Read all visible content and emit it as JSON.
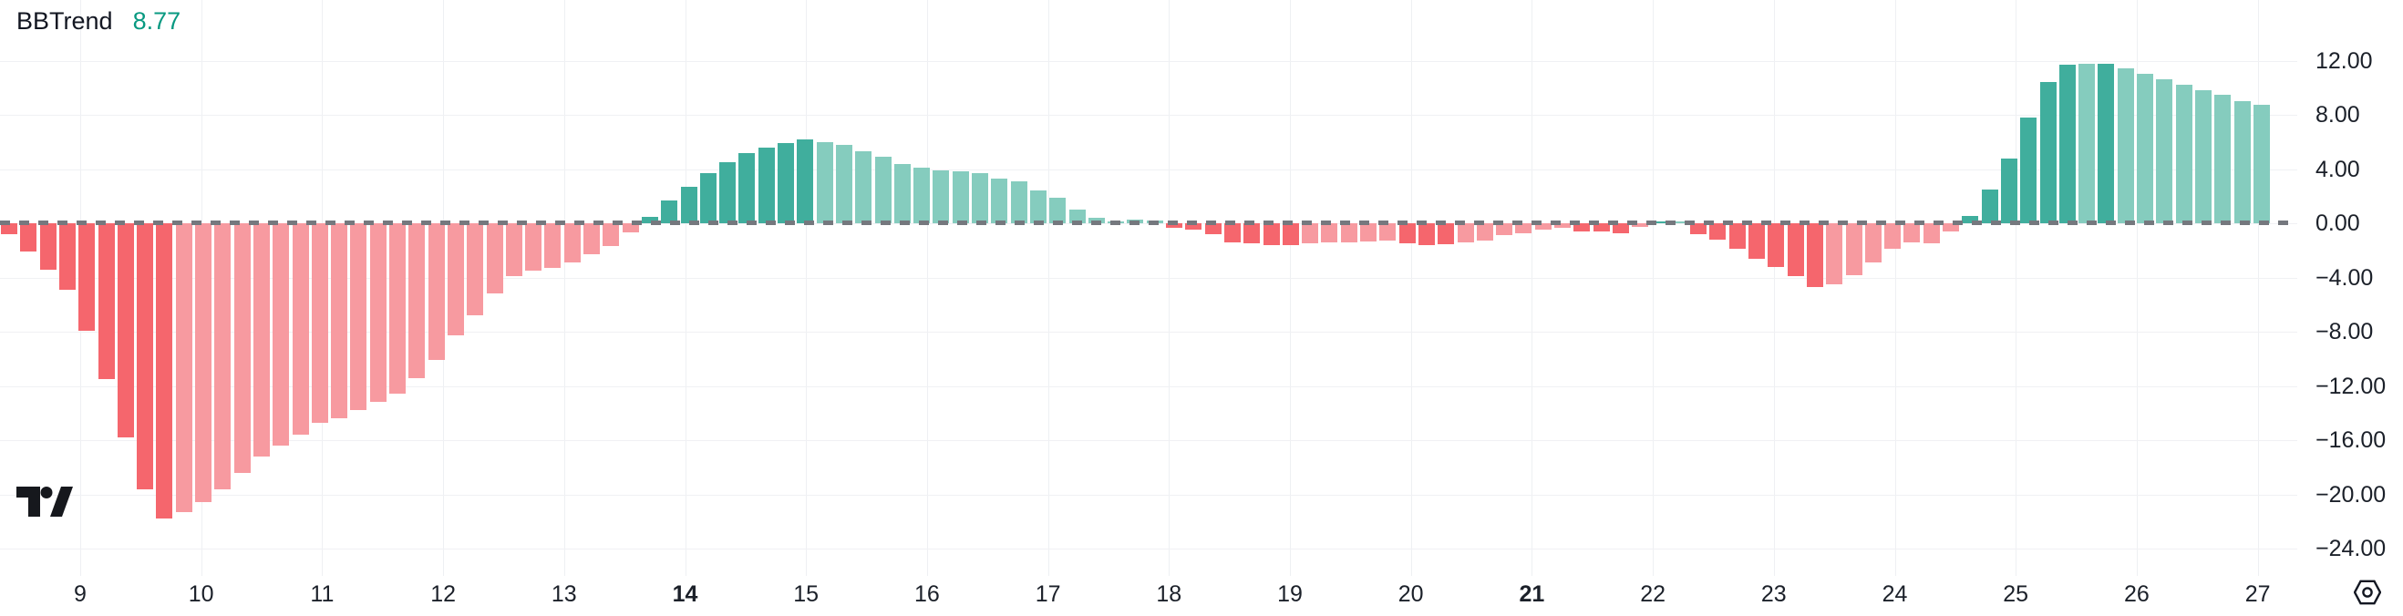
{
  "header": {
    "indicator_name": "BBTrend",
    "value": "8.77"
  },
  "colors": {
    "background": "#FFFFFF",
    "value_text": "#089981",
    "title_text": "#131722",
    "axis_text": "#1B2029",
    "grid": "#F0F1F4",
    "zero_dash": "#75787E",
    "neg_strong": "#F5666D",
    "neg_weak": "#F79AA0",
    "pos_strong": "#40AE9D",
    "pos_weak": "#85CCBE"
  },
  "icons": {
    "logo": "tradingview-logo",
    "gear": "timeframe-settings-icon"
  },
  "chart_data": {
    "type": "bar",
    "title": "BBTrend",
    "last_value": 8.77,
    "legend_position": "top-left",
    "grid": true,
    "y_axis": {
      "side": "right",
      "ticks": [
        12,
        8,
        4,
        0,
        -4,
        -8,
        -12,
        -16,
        -20,
        -24
      ],
      "tick_labels": [
        "12.00",
        "8.00",
        "4.00",
        "0.00",
        "−4.00",
        "−8.00",
        "−12.00",
        "−16.00",
        "−20.00",
        "−24.00"
      ]
    },
    "x_axis": {
      "ticks": [
        {
          "label": "9",
          "bold": false
        },
        {
          "label": "10",
          "bold": false
        },
        {
          "label": "11",
          "bold": false
        },
        {
          "label": "12",
          "bold": false
        },
        {
          "label": "13",
          "bold": false
        },
        {
          "label": "14",
          "bold": true
        },
        {
          "label": "15",
          "bold": false
        },
        {
          "label": "16",
          "bold": false
        },
        {
          "label": "17",
          "bold": false
        },
        {
          "label": "18",
          "bold": false
        },
        {
          "label": "19",
          "bold": false
        },
        {
          "label": "20",
          "bold": false
        },
        {
          "label": "21",
          "bold": true
        },
        {
          "label": "22",
          "bold": false
        },
        {
          "label": "23",
          "bold": false
        },
        {
          "label": "24",
          "bold": false
        },
        {
          "label": "25",
          "bold": false
        },
        {
          "label": "26",
          "bold": false
        },
        {
          "label": "27",
          "bold": false
        }
      ]
    },
    "series": [
      {
        "name": "BBTrend histogram",
        "values": [
          -0.8,
          -2.1,
          -3.4,
          -4.9,
          -7.9,
          -11.5,
          -15.8,
          -19.6,
          -21.8,
          -21.3,
          -20.6,
          -19.6,
          -18.4,
          -17.2,
          -16.4,
          -15.6,
          -14.7,
          -14.4,
          -13.8,
          -13.2,
          -12.6,
          -11.4,
          -10.1,
          -8.3,
          -6.8,
          -5.2,
          -3.9,
          -3.5,
          -3.3,
          -2.9,
          -2.3,
          -1.7,
          -0.7,
          0.5,
          1.7,
          2.7,
          3.7,
          4.5,
          5.2,
          5.6,
          5.9,
          6.2,
          6.0,
          5.8,
          5.3,
          4.9,
          4.4,
          4.1,
          3.9,
          3.8,
          3.7,
          3.3,
          3.1,
          2.4,
          1.9,
          1.0,
          0.4,
          0.15,
          0.25,
          0.2,
          -0.35,
          -0.5,
          -0.8,
          -1.4,
          -1.5,
          -1.6,
          -1.6,
          -1.5,
          -1.4,
          -1.4,
          -1.35,
          -1.25,
          -1.5,
          -1.6,
          -1.55,
          -1.4,
          -1.25,
          -0.9,
          -0.75,
          -0.5,
          -0.35,
          -0.6,
          -0.6,
          -0.75,
          -0.3,
          0.08,
          0.08,
          -0.8,
          -1.2,
          -1.85,
          -2.6,
          -3.2,
          -3.9,
          -4.7,
          -4.5,
          -3.8,
          -2.9,
          -1.9,
          -1.4,
          -1.5,
          -0.6,
          0.55,
          2.5,
          4.8,
          7.8,
          10.4,
          11.7,
          11.75,
          11.75,
          11.45,
          11.0,
          10.65,
          10.2,
          9.8,
          9.45,
          9.0,
          8.77
        ],
        "states": [
          "dr",
          "dr",
          "dr",
          "dr",
          "dr",
          "dr",
          "dr",
          "dr",
          "dr",
          "lr",
          "lr",
          "lr",
          "lr",
          "lr",
          "lr",
          "lr",
          "lr",
          "lr",
          "lr",
          "lr",
          "lr",
          "lr",
          "lr",
          "lr",
          "lr",
          "lr",
          "lr",
          "lr",
          "lr",
          "lr",
          "lr",
          "lr",
          "lr",
          "dg",
          "dg",
          "dg",
          "dg",
          "dg",
          "dg",
          "dg",
          "dg",
          "dg",
          "lg",
          "lg",
          "lg",
          "lg",
          "lg",
          "lg",
          "lg",
          "lg",
          "lg",
          "lg",
          "lg",
          "lg",
          "lg",
          "lg",
          "lg",
          "lg",
          "lg",
          "lg",
          "dr",
          "dr",
          "dr",
          "dr",
          "dr",
          "dr",
          "dr",
          "lr",
          "lr",
          "lr",
          "lr",
          "lr",
          "dr",
          "dr",
          "dr",
          "lr",
          "lr",
          "lr",
          "lr",
          "lr",
          "lr",
          "dr",
          "dr",
          "dr",
          "lr",
          "dg",
          "lg",
          "dr",
          "dr",
          "dr",
          "dr",
          "dr",
          "dr",
          "dr",
          "lr",
          "lr",
          "lr",
          "lr",
          "lr",
          "lr",
          "lr",
          "dg",
          "dg",
          "dg",
          "dg",
          "dg",
          "dg",
          "lg",
          "dg",
          "lg",
          "lg",
          "lg",
          "lg",
          "lg",
          "lg",
          "lg",
          "lg"
        ],
        "state_legend": {
          "dr": "negative strengthening (bright red)",
          "lr": "negative weakening (light pink)",
          "dg": "positive strengthening (dark teal)",
          "lg": "positive weakening (light teal)"
        }
      }
    ]
  }
}
